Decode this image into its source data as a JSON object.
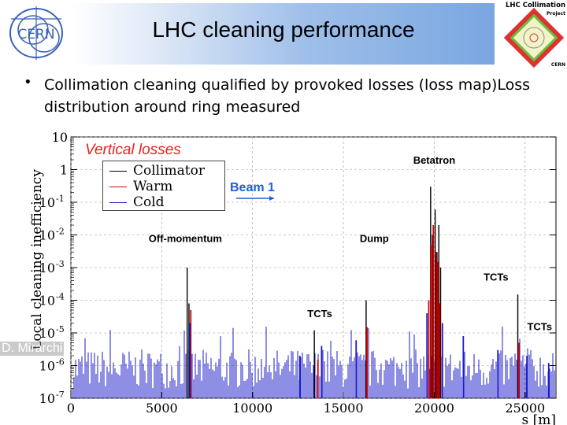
{
  "slide": {
    "title": "LHC cleaning performance",
    "bullet": "Collimation cleaning qualified by provoked losses (loss map)Loss distribution around ring measured",
    "author": "D. Mirarchi"
  },
  "logos": {
    "cern": "CERN",
    "project_line1": "LHC Collimation",
    "project_line2": "Project",
    "project_line3": "CERN"
  },
  "colors": {
    "collimator": "#000000",
    "warm": "#d40000",
    "cold": "#1c1cc8",
    "title_red": "#e8201c",
    "beam_blue": "#1f5fd6"
  },
  "chart_data": {
    "type": "bar",
    "title": "Vertical losses",
    "xlabel": "s [m]",
    "ylabel": "Local cleaning inefficiency",
    "y_scale": "log",
    "xlim": [
      0,
      26700
    ],
    "ylim": [
      1e-07,
      10
    ],
    "x_ticks": [
      0,
      5000,
      10000,
      15000,
      20000,
      25000
    ],
    "y_ticks": [
      {
        "label": "10",
        "exp": ""
      },
      {
        "label": "1",
        "exp": ""
      },
      {
        "label": "10",
        "exp": "-1"
      },
      {
        "label": "10",
        "exp": "-2"
      },
      {
        "label": "10",
        "exp": "-3"
      },
      {
        "label": "10",
        "exp": "-4"
      },
      {
        "label": "10",
        "exp": "-5"
      },
      {
        "label": "10",
        "exp": "-6"
      },
      {
        "label": "10",
        "exp": "-7"
      }
    ],
    "legend": {
      "placement": "top-left",
      "entries": [
        {
          "label": "Collimator",
          "series": "collimator"
        },
        {
          "label": "Warm",
          "series": "warm"
        },
        {
          "label": "Cold",
          "series": "cold"
        }
      ]
    },
    "beam_label": "Beam 1",
    "annotations": [
      {
        "text": "Betatron",
        "x": 20000,
        "y": 1.5
      },
      {
        "text": "Off-momentum",
        "x": 6300,
        "y": 0.006
      },
      {
        "text": "Dump",
        "x": 16700,
        "y": 0.006
      },
      {
        "text": "TCTs",
        "x": 13700,
        "y": 3e-05
      },
      {
        "text": "TCTs",
        "x": 23400,
        "y": 0.0004
      },
      {
        "text": "TCTs",
        "x": 25800,
        "y": 1.2e-05
      }
    ],
    "series": [
      {
        "name": "Collimator",
        "points": [
          {
            "x": 6400,
            "y": 0.001
          },
          {
            "x": 6500,
            "y": 8e-05
          },
          {
            "x": 19800,
            "y": 0.3
          },
          {
            "x": 19900,
            "y": 0.01
          },
          {
            "x": 20050,
            "y": 0.06
          },
          {
            "x": 20150,
            "y": 0.003
          },
          {
            "x": 20250,
            "y": 0.02
          },
          {
            "x": 20350,
            "y": 0.001
          },
          {
            "x": 16250,
            "y": 0.0001
          },
          {
            "x": 24600,
            "y": 0.00015
          },
          {
            "x": 13400,
            "y": 1.2e-05
          }
        ]
      },
      {
        "name": "Warm",
        "points": [
          {
            "x": 6600,
            "y": 5e-05
          },
          {
            "x": 13600,
            "y": 1.5e-06
          },
          {
            "x": 19700,
            "y": 0.0001
          },
          {
            "x": 19820,
            "y": 0.005
          },
          {
            "x": 19950,
            "y": 0.02
          },
          {
            "x": 20100,
            "y": 0.003
          },
          {
            "x": 20200,
            "y": 0.0015
          },
          {
            "x": 20300,
            "y": 8e-05
          },
          {
            "x": 16300,
            "y": 1.5e-05
          },
          {
            "x": 24650,
            "y": 5e-06
          }
        ]
      },
      {
        "name": "Cold",
        "points": [
          {
            "x": 6550,
            "y": 2e-05
          },
          {
            "x": 12600,
            "y": 2e-06
          },
          {
            "x": 13800,
            "y": 4e-06
          },
          {
            "x": 15700,
            "y": 6e-06
          },
          {
            "x": 19600,
            "y": 4e-05
          },
          {
            "x": 20450,
            "y": 2e-05
          },
          {
            "x": 21600,
            "y": 8e-06
          },
          {
            "x": 23500,
            "y": 3e-06
          },
          {
            "x": 25100,
            "y": 2e-06
          },
          {
            "x": 26300,
            "y": 1.2e-06
          }
        ]
      }
    ]
  }
}
